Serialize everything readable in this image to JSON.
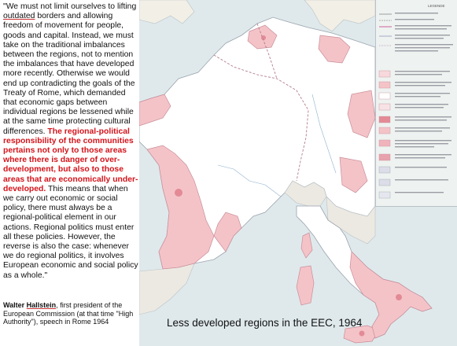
{
  "quote": {
    "part1a": "\"We must not limit ourselves to lifting ",
    "part1b": "outdated",
    "part1c": " borders and allowing freedom of movement for people, goods and capital. Instead, we must take on the traditional imbalances between the regions, not to mention the imbalances that have developed more recently. Otherwise we would end up contradicting the goals of the Treaty of Rome, which demanded that economic gaps between individual regions be lessened while at the same time protecting cultural differences. ",
    "highlight": "The regional-political responsibility of the communities pertains not only to those areas where there is danger of over-development, but also to those areas that are economically under-developed.",
    "part2": " This means that when we carry out economic or social policy, there must always be a regional-political element in our actions. Regional politics must enter all these policies. However, the reverse is also the case: whenever we do regional politics, it involves European economic and social policy as a whole.\""
  },
  "attribution": {
    "name_first": "Walter ",
    "name_last": "Hallstein",
    "rest": ", first president of the European Commission (at that time \"High Authority\"), speech in Rome 1964"
  },
  "map": {
    "caption": "Less developed regions in the EEC, 1964",
    "legend_title": "LEGENDE",
    "colors": {
      "sea": "#dfe9ec",
      "land": "#ffffff",
      "highlight": "#f4c3c8",
      "highlight_dark": "#e38a96",
      "border": "#9aa3ad"
    }
  }
}
